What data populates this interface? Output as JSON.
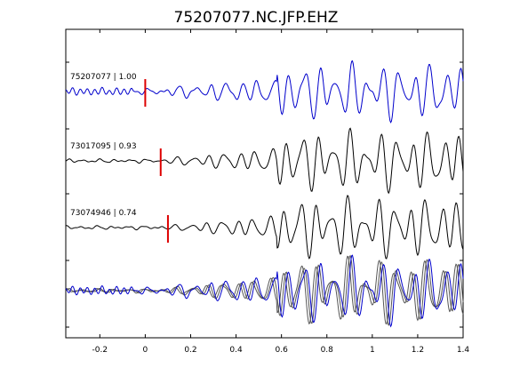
{
  "chart_data": {
    "type": "line",
    "title": "75207077.NC.JFP.EHZ",
    "xlim": [
      -0.35,
      1.4
    ],
    "xticks": [
      "-0.2",
      "0",
      "0.2",
      "0.4",
      "0.6",
      "0.8",
      "1",
      "1.2",
      "1.4"
    ],
    "xtick_values": [
      -0.2,
      0,
      0.2,
      0.4,
      0.6,
      0.8,
      1.0,
      1.2,
      1.4
    ],
    "grid": false,
    "colors": {
      "reference": "#0000cc",
      "other": "#000000",
      "overlay_other": "#555555",
      "pick": "#dd0000"
    },
    "series": [
      {
        "id": "75207077",
        "label": "75207077 | 1.00",
        "correlation": 1.0,
        "pick_time": 0.0,
        "color": "#0000cc"
      },
      {
        "id": "73017095",
        "label": "73017095 | 0.93",
        "correlation": 0.93,
        "pick_time": 0.068,
        "color": "#000000"
      },
      {
        "id": "73074946",
        "label": "73074946 | 0.74",
        "correlation": 0.74,
        "pick_time": 0.1,
        "color": "#000000"
      }
    ],
    "overlay_panel": {
      "series_ids": [
        "75207077",
        "73017095",
        "73074946"
      ]
    }
  }
}
